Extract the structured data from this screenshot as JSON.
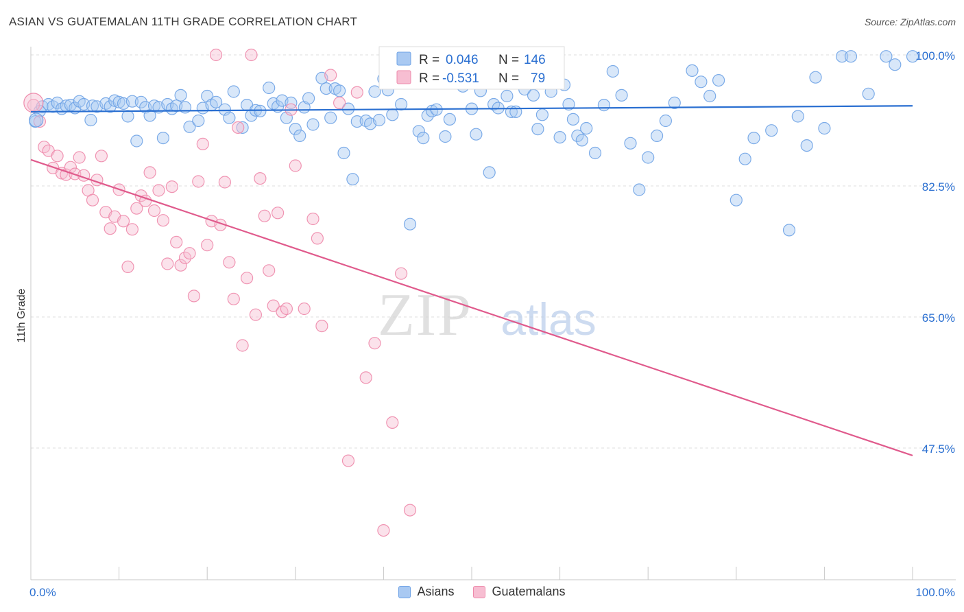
{
  "header": {
    "title": "ASIAN VS GUATEMALAN 11TH GRADE CORRELATION CHART",
    "source": "Source: ZipAtlas.com"
  },
  "chart_data": {
    "type": "scatter",
    "title": "ASIAN VS GUATEMALAN 11TH GRADE CORRELATION CHART",
    "xlabel": "",
    "ylabel": "11th Grade",
    "xlim": [
      0,
      100
    ],
    "ylim": [
      30,
      100
    ],
    "x_tick_labels": [
      "0.0%",
      "100.0%"
    ],
    "y_ticks": [
      47.5,
      65.0,
      82.5,
      100.0
    ],
    "y_tick_labels": [
      "47.5%",
      "65.0%",
      "82.5%",
      "100.0%"
    ],
    "grid": true,
    "legend_position": "top-center",
    "watermark": {
      "zip": "ZIP",
      "atlas": "atlas"
    },
    "stats": [
      {
        "r_label": "R =",
        "r_value": "0.046",
        "n_label": "N =",
        "n_value": "146"
      },
      {
        "r_label": "R =",
        "r_value": "-0.531",
        "n_label": "N =",
        "n_value": "79"
      }
    ],
    "series": [
      {
        "name": "Asians",
        "color": "#6fa3e6",
        "fill": "#a9c9f2",
        "trend_color": "#2a6fd1",
        "trend": [
          [
            0,
            92.4
          ],
          [
            100,
            93.2
          ]
        ],
        "points": [
          [
            0.5,
            91.1
          ],
          [
            1,
            92.5
          ],
          [
            1.3,
            93.1
          ],
          [
            2,
            93.4
          ],
          [
            2.5,
            93.1
          ],
          [
            3,
            93.6
          ],
          [
            3.5,
            92.8
          ],
          [
            4,
            93.2
          ],
          [
            4.5,
            93.3
          ],
          [
            5,
            92.9
          ],
          [
            5.5,
            93.8
          ],
          [
            6,
            93.4
          ],
          [
            6.8,
            91.3
          ],
          [
            7,
            93.2
          ],
          [
            7.5,
            93.1
          ],
          [
            8.5,
            93.5
          ],
          [
            9,
            93.1
          ],
          [
            9.5,
            93.9
          ],
          [
            10,
            93.7
          ],
          [
            10.5,
            93.5
          ],
          [
            11,
            91.8
          ],
          [
            11.5,
            93.8
          ],
          [
            12,
            88.5
          ],
          [
            12.5,
            93.7
          ],
          [
            13,
            93.0
          ],
          [
            13.5,
            91.9
          ],
          [
            14,
            93.2
          ],
          [
            14.5,
            93.0
          ],
          [
            15,
            88.9
          ],
          [
            15.5,
            93.4
          ],
          [
            16,
            92.8
          ],
          [
            16.5,
            93.2
          ],
          [
            17,
            94.6
          ],
          [
            17.5,
            93.0
          ],
          [
            18,
            90.4
          ],
          [
            19,
            91.2
          ],
          [
            19.5,
            92.9
          ],
          [
            20,
            94.5
          ],
          [
            20.5,
            93.3
          ],
          [
            21,
            93.7
          ],
          [
            22,
            92.7
          ],
          [
            22.5,
            91.6
          ],
          [
            23,
            95.1
          ],
          [
            24,
            90.3
          ],
          [
            24.5,
            93.3
          ],
          [
            25,
            91.9
          ],
          [
            25.5,
            92.6
          ],
          [
            26,
            92.5
          ],
          [
            27,
            95.6
          ],
          [
            27.5,
            93.5
          ],
          [
            28,
            93.1
          ],
          [
            28.5,
            93.9
          ],
          [
            29,
            91.6
          ],
          [
            29.5,
            93.6
          ],
          [
            30,
            90.1
          ],
          [
            30.5,
            89.2
          ],
          [
            31,
            93.0
          ],
          [
            31.5,
            94.2
          ],
          [
            32,
            90.7
          ],
          [
            33,
            96.9
          ],
          [
            33.5,
            95.5
          ],
          [
            34,
            91.6
          ],
          [
            34.5,
            95.5
          ],
          [
            35,
            95.2
          ],
          [
            35.5,
            86.9
          ],
          [
            36,
            92.8
          ],
          [
            36.5,
            83.4
          ],
          [
            37,
            91.1
          ],
          [
            38,
            91.2
          ],
          [
            38.5,
            90.8
          ],
          [
            39,
            95.1
          ],
          [
            39.5,
            91.3
          ],
          [
            40,
            96.8
          ],
          [
            40.5,
            95.3
          ],
          [
            41,
            92.0
          ],
          [
            42,
            93.4
          ],
          [
            42.5,
            97.4
          ],
          [
            43,
            77.4
          ],
          [
            44,
            89.8
          ],
          [
            44.5,
            88.9
          ],
          [
            45,
            91.9
          ],
          [
            45.5,
            92.5
          ],
          [
            46,
            92.7
          ],
          [
            47,
            89.1
          ],
          [
            47.5,
            91.4
          ],
          [
            48,
            96.9
          ],
          [
            49,
            95.8
          ],
          [
            50,
            92.8
          ],
          [
            50.5,
            89.4
          ],
          [
            51,
            95.2
          ],
          [
            51.5,
            97.1
          ],
          [
            52,
            84.3
          ],
          [
            52.5,
            93.4
          ],
          [
            53,
            92.9
          ],
          [
            54,
            94.5
          ],
          [
            54.5,
            92.4
          ],
          [
            55,
            92.4
          ],
          [
            56,
            95.4
          ],
          [
            57,
            94.6
          ],
          [
            57.5,
            90.1
          ],
          [
            58,
            92.0
          ],
          [
            59,
            95.1
          ],
          [
            59.5,
            98.4
          ],
          [
            60,
            89.0
          ],
          [
            60.5,
            96.0
          ],
          [
            61,
            93.4
          ],
          [
            61.5,
            91.4
          ],
          [
            62,
            89.2
          ],
          [
            62.5,
            88.6
          ],
          [
            63,
            90.2
          ],
          [
            64,
            86.9
          ],
          [
            65,
            93.3
          ],
          [
            66,
            97.8
          ],
          [
            67,
            94.6
          ],
          [
            68,
            88.2
          ],
          [
            69,
            82.0
          ],
          [
            70,
            86.3
          ],
          [
            71,
            89.2
          ],
          [
            72,
            91.2
          ],
          [
            73,
            93.6
          ],
          [
            75,
            97.9
          ],
          [
            76,
            96.4
          ],
          [
            77,
            94.5
          ],
          [
            78,
            96.6
          ],
          [
            80,
            80.6
          ],
          [
            81,
            86.1
          ],
          [
            82,
            88.9
          ],
          [
            84,
            89.9
          ],
          [
            86,
            76.6
          ],
          [
            87,
            91.8
          ],
          [
            88,
            87.9
          ],
          [
            89,
            97.0
          ],
          [
            90,
            90.2
          ],
          [
            92,
            99.8
          ],
          [
            93,
            99.8
          ],
          [
            95,
            94.8
          ],
          [
            97,
            99.8
          ],
          [
            98,
            98.7
          ],
          [
            100,
            99.8
          ]
        ]
      },
      {
        "name": "Guatemalans",
        "color": "#ee8aab",
        "fill": "#f7bed2",
        "trend_color": "#e05a8c",
        "trend": [
          [
            0,
            86.0
          ],
          [
            100,
            46.5
          ]
        ],
        "points": [
          [
            0.3,
            93.3
          ],
          [
            1,
            91.1
          ],
          [
            1.5,
            87.7
          ],
          [
            2,
            87.2
          ],
          [
            2.5,
            84.9
          ],
          [
            3,
            86.5
          ],
          [
            3.5,
            84.2
          ],
          [
            4,
            84.0
          ],
          [
            4.5,
            85.0
          ],
          [
            5,
            84.1
          ],
          [
            5.5,
            86.3
          ],
          [
            6,
            83.9
          ],
          [
            6.5,
            81.9
          ],
          [
            7,
            80.6
          ],
          [
            7.5,
            83.3
          ],
          [
            8,
            86.5
          ],
          [
            8.5,
            79.0
          ],
          [
            9,
            76.8
          ],
          [
            9.5,
            78.4
          ],
          [
            10,
            82.0
          ],
          [
            10.5,
            77.8
          ],
          [
            11,
            71.7
          ],
          [
            11.5,
            76.7
          ],
          [
            12,
            79.5
          ],
          [
            12.5,
            81.2
          ],
          [
            13,
            80.5
          ],
          [
            13.5,
            84.3
          ],
          [
            14,
            79.2
          ],
          [
            14.5,
            81.9
          ],
          [
            15,
            77.9
          ],
          [
            15.5,
            72.1
          ],
          [
            16,
            82.4
          ],
          [
            16.5,
            75.0
          ],
          [
            17,
            71.9
          ],
          [
            17.5,
            72.9
          ],
          [
            18,
            73.5
          ],
          [
            18.5,
            67.8
          ],
          [
            19,
            83.1
          ],
          [
            19.5,
            88.1
          ],
          [
            20,
            74.6
          ],
          [
            20.5,
            77.8
          ],
          [
            21,
            100.0
          ],
          [
            21.5,
            77.3
          ],
          [
            22,
            83.0
          ],
          [
            22.5,
            72.3
          ],
          [
            23,
            67.4
          ],
          [
            23.5,
            90.3
          ],
          [
            24,
            61.2
          ],
          [
            24.5,
            70.2
          ],
          [
            25,
            100.0
          ],
          [
            25.5,
            65.3
          ],
          [
            26,
            83.5
          ],
          [
            26.5,
            78.5
          ],
          [
            27,
            71.2
          ],
          [
            27.5,
            66.5
          ],
          [
            28,
            78.9
          ],
          [
            28.5,
            65.7
          ],
          [
            29,
            66.1
          ],
          [
            29.5,
            92.7
          ],
          [
            30,
            85.2
          ],
          [
            31,
            66.1
          ],
          [
            32,
            78.1
          ],
          [
            32.5,
            75.5
          ],
          [
            33,
            63.8
          ],
          [
            34,
            97.3
          ],
          [
            35,
            93.6
          ],
          [
            36,
            45.8
          ],
          [
            37,
            95.0
          ],
          [
            38,
            56.9
          ],
          [
            39,
            61.5
          ],
          [
            40,
            36.5
          ],
          [
            41,
            50.9
          ],
          [
            42,
            70.8
          ],
          [
            43,
            39.2
          ]
        ]
      }
    ]
  },
  "legend": {
    "items": [
      {
        "label": "Asians",
        "color": "#6fa3e6",
        "fill": "#a9c9f2"
      },
      {
        "label": "Guatemalans",
        "color": "#ee8aab",
        "fill": "#f7bed2"
      }
    ]
  }
}
